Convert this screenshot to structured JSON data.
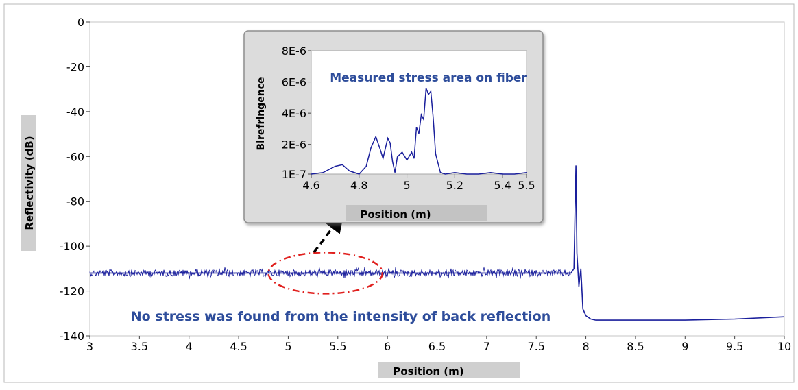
{
  "chart_data": [
    {
      "type": "line",
      "xlabel": "Position (m)",
      "ylabel": "Reflectivity (dB)",
      "xlim": [
        3,
        10
      ],
      "ylim": [
        -140,
        0
      ],
      "xticks": [
        "3",
        "3.5",
        "4",
        "4.5",
        "5",
        "5.5",
        "6",
        "6.5",
        "7",
        "7.5",
        "8",
        "8.5",
        "9",
        "9.5",
        "10"
      ],
      "yticks": [
        "0",
        "-20",
        "-40",
        "-60",
        "-80",
        "-100",
        "-120",
        "-140"
      ],
      "grid": false,
      "series_color": "#1a1f9c",
      "series": [
        {
          "x": [
            3.0,
            4.0,
            5.0,
            6.0,
            7.0,
            7.85,
            7.88,
            7.9,
            7.91,
            7.93,
            7.95,
            7.97,
            8.0,
            8.05,
            8.1,
            8.2,
            8.5,
            9.0,
            9.5,
            10.0
          ],
          "y": [
            -112,
            -112,
            -112,
            -112,
            -112,
            -112,
            -110,
            -64,
            -103,
            -118,
            -110,
            -128,
            -131,
            -132.5,
            -133,
            -133,
            -133,
            -133,
            -132.5,
            -131.5
          ]
        }
      ],
      "annotations": {
        "bottom_text": "No stress was found from the intensity of back reflection",
        "highlight_color": "#e0201e",
        "highlight_region_x": [
          4.8,
          5.95
        ]
      }
    },
    {
      "type": "line",
      "xlabel": "Position (m)",
      "ylabel": "Birefringence",
      "xlim": [
        4.6,
        5.5
      ],
      "ylim": [
        1e-07,
        8e-06
      ],
      "xticks": [
        "4.6",
        "4.8",
        "5",
        "5.2",
        "5.4",
        "5.5"
      ],
      "yticks": [
        "8E-6",
        "6E-6",
        "4E-6",
        "2E-6",
        "1E-7"
      ],
      "series_color": "#1a1f9c",
      "series": [
        {
          "x": [
            4.6,
            4.65,
            4.7,
            4.73,
            4.76,
            4.8,
            4.83,
            4.85,
            4.87,
            4.89,
            4.9,
            4.92,
            4.93,
            4.94,
            4.95,
            4.96,
            4.98,
            5.0,
            5.02,
            5.03,
            5.04,
            5.05,
            5.06,
            5.07,
            5.08,
            5.09,
            5.1,
            5.11,
            5.12,
            5.14,
            5.16,
            5.2,
            5.25,
            5.3,
            5.35,
            5.4,
            5.45,
            5.5
          ],
          "y": [
            1e-07,
            2e-07,
            6e-07,
            7e-07,
            3e-07,
            1e-07,
            6e-07,
            1.8e-06,
            2.5e-06,
            1.6e-06,
            1.1e-06,
            2.4e-06,
            2.1e-06,
            9e-07,
            2e-07,
            1.2e-06,
            1.5e-06,
            1e-06,
            1.5e-06,
            1.1e-06,
            3.1e-06,
            2.7e-06,
            3.9e-06,
            3.6e-06,
            5.6e-06,
            5.2e-06,
            5.4e-06,
            3.7e-06,
            1.4e-06,
            2e-07,
            1e-07,
            2e-07,
            1e-07,
            1e-07,
            2e-07,
            1e-07,
            1e-07,
            2e-07
          ]
        }
      ],
      "annotations": {
        "title_text": "Measured stress area on fiber"
      }
    }
  ]
}
